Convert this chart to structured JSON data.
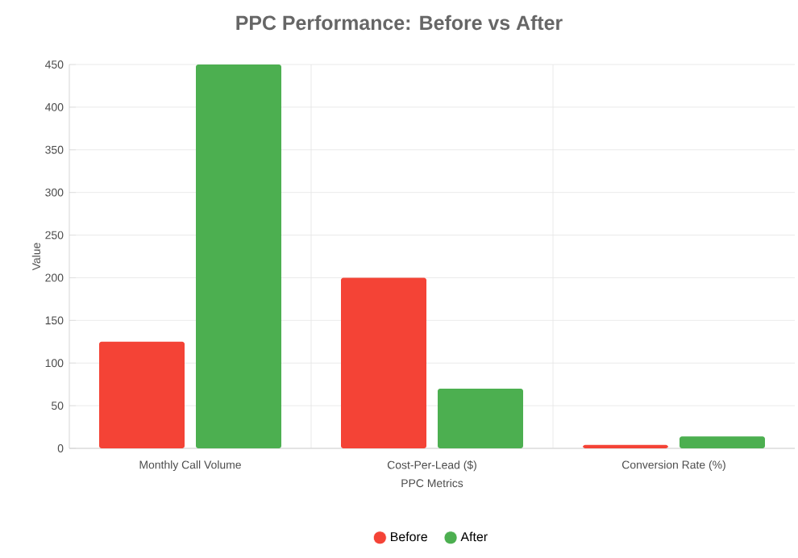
{
  "chart_data": {
    "type": "bar",
    "title": "PPC Performance: Before vs After",
    "xlabel": "PPC Metrics",
    "ylabel": "Value",
    "categories": [
      "Monthly Call Volume",
      "Cost-Per-Lead ($)",
      "Conversion Rate (%)"
    ],
    "series": [
      {
        "name": "Before",
        "color": "#f44336",
        "values": [
          125,
          200,
          4
        ]
      },
      {
        "name": "After",
        "color": "#4caf50",
        "values": [
          450,
          70,
          14
        ]
      }
    ],
    "ylim": [
      0,
      450
    ],
    "yticks": [
      0,
      50,
      100,
      150,
      200,
      250,
      300,
      350,
      400,
      450
    ],
    "grid": true,
    "legend": "bottom"
  }
}
